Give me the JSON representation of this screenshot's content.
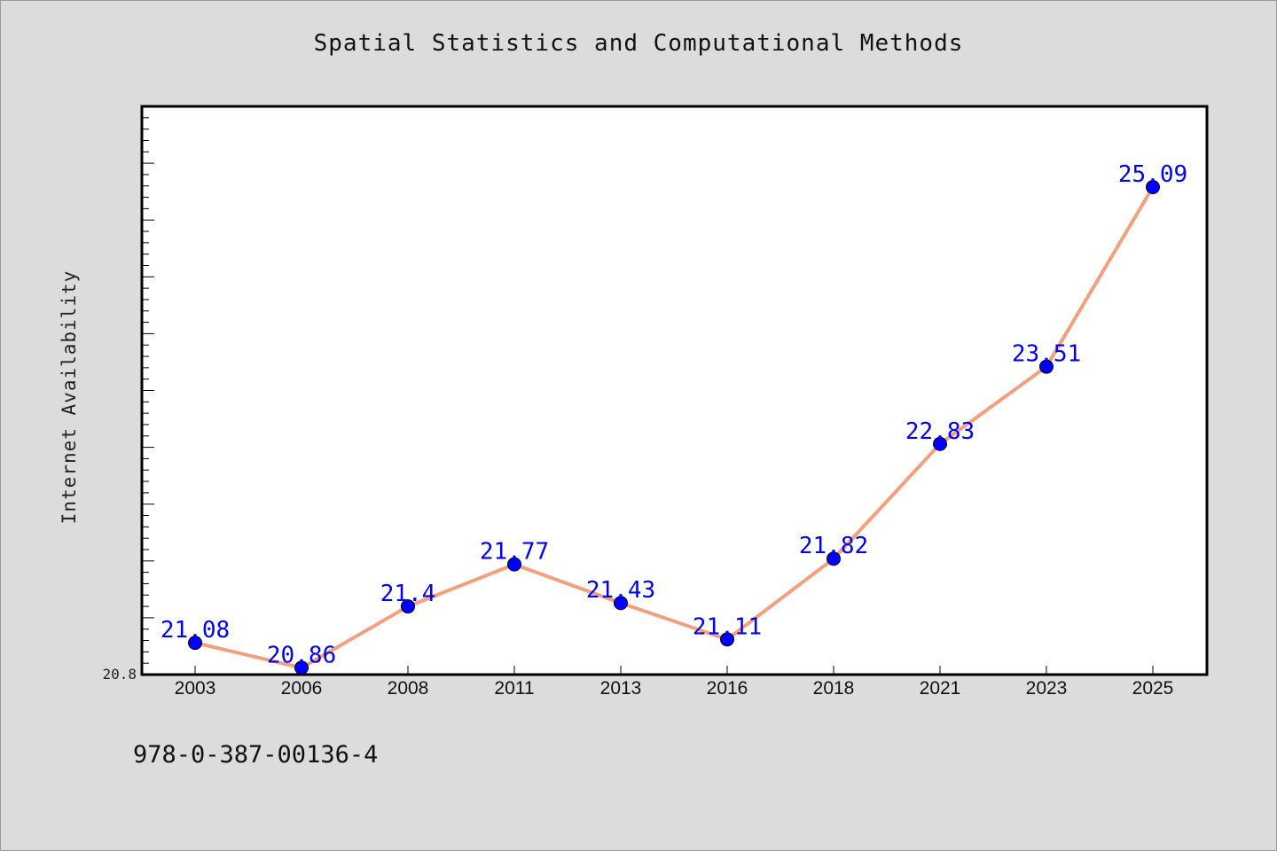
{
  "chart_data": {
    "type": "line",
    "title": "Spatial Statistics and Computational Methods",
    "ylabel": "Internet Availability",
    "xlabel": "",
    "categories": [
      "2003",
      "2006",
      "2008",
      "2011",
      "2013",
      "2016",
      "2018",
      "2021",
      "2023",
      "2025"
    ],
    "series": [
      {
        "values": [
          21.08,
          20.86,
          21.4,
          21.77,
          21.43,
          21.11,
          21.82,
          22.83,
          23.51,
          25.09
        ],
        "line_color": "#f4a07c",
        "marker_color": "#0000ff",
        "label_color": "#0000ff"
      }
    ],
    "ylim": [
      20.8,
      25.8
    ],
    "y_tick_labels": [
      "20.8"
    ],
    "grid": false,
    "legend": "none"
  },
  "footer": {
    "code": "978-0-387-00136-4"
  }
}
